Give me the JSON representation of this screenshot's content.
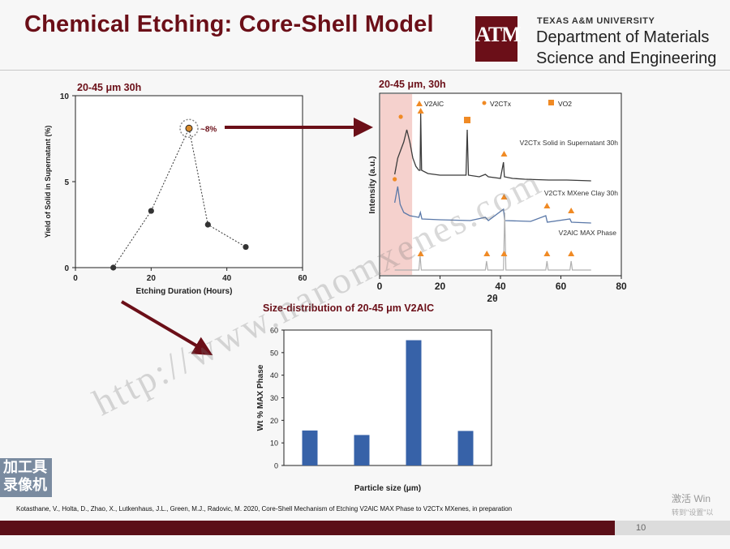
{
  "slide": {
    "title": "Chemical Etching: Core-Shell Model",
    "page_number": "10",
    "citation": "Kotasthane, V., Holta, D., Zhao, X., Lutkenhaus, J.L., Green, M.J., Radovic, M. 2020, Core-Shell Mechanism of Etching V2AlC MAX Phase to V2CTx MXenes, in preparation",
    "watermark": "http://www.nanomxenes.com",
    "corner_badge": [
      "加工具",
      "录像机"
    ],
    "activate_text": "激活 Win",
    "activate_sub": "转到\"设置\"以"
  },
  "header": {
    "university": "TEXAS A&M UNIVERSITY",
    "department_line1": "Department of Materials",
    "department_line2": "Science and Engineering",
    "logo_text": "ATM"
  },
  "colors": {
    "maroon": "#6b0f18",
    "bar_blue": "#3762a8",
    "xrd_dark": "#3b3b3b",
    "xrd_blue": "#5a78a8",
    "xrd_grey": "#b0b0b0",
    "highlight": "#f3c9c4",
    "orange": "#f08a24"
  },
  "chart_data": [
    {
      "type": "scatter",
      "title": "20-45 μm 30h",
      "xlabel": "Etching Duration (Hours)",
      "ylabel": "Yield of Solid in Supernatant (%)",
      "xlim": [
        0,
        60
      ],
      "ylim": [
        0,
        10
      ],
      "xticks": [
        0,
        20,
        40,
        60
      ],
      "yticks": [
        0,
        5,
        10
      ],
      "x": [
        10,
        20,
        30,
        35,
        45
      ],
      "y": [
        0,
        3.3,
        8.1,
        2.5,
        1.2
      ],
      "annotation": "~8%",
      "line_style": "dotted"
    },
    {
      "type": "line",
      "title": "20-45 μm, 30h",
      "xlabel": "2θ",
      "ylabel": "Intensity (a.u.)",
      "xlim": [
        0,
        80
      ],
      "xticks": [
        0,
        20,
        40,
        60,
        80
      ],
      "legend": [
        "V2AlC",
        "V2CTx",
        "VO2"
      ],
      "series": [
        {
          "name": "V2CTx Solid in Supernatant 30h"
        },
        {
          "name": "V2CTx MXene Clay 30h"
        },
        {
          "name": "V2AlC MAX Phase"
        }
      ]
    },
    {
      "type": "bar",
      "title": "Size-distribution of 20-45 μm V2AlC",
      "xlabel": "Particle size (μm)",
      "ylabel": "Wt % MAX Phase",
      "ylim": [
        0,
        60
      ],
      "yticks": [
        0,
        10,
        20,
        30,
        40,
        50,
        60
      ],
      "categories": [
        "",
        "",
        "",
        ""
      ],
      "values": [
        15.5,
        13.5,
        55.5,
        15.3
      ]
    }
  ]
}
